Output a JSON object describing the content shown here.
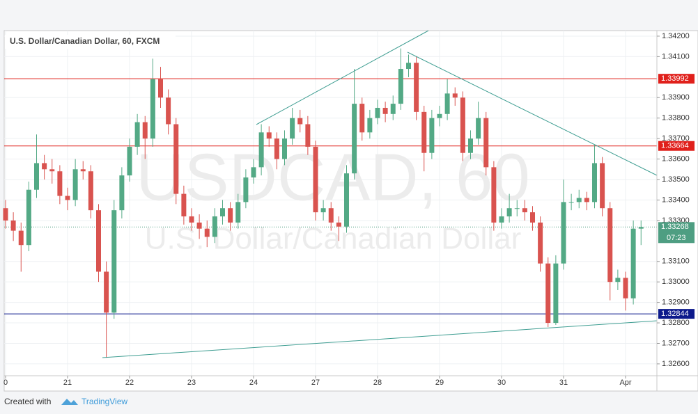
{
  "chart_data": {
    "type": "candlestick",
    "title": "U.S. Dollar/Canadian Dollar, 60, FXCM",
    "watermark": "USDCAD, 60",
    "watermark_subtitle": "U.S. Dollar/Canadian Dollar",
    "up_color": "#53a985",
    "down_color": "#d9534f",
    "ylim": [
      1.32542,
      1.34227
    ],
    "yticks": [
      {
        "value": 1.326,
        "label": "1.32600"
      },
      {
        "value": 1.327,
        "label": "1.32700"
      },
      {
        "value": 1.328,
        "label": "1.32800"
      },
      {
        "value": 1.329,
        "label": "1.32900"
      },
      {
        "value": 1.33,
        "label": "1.33000"
      },
      {
        "value": 1.331,
        "label": "1.33100"
      },
      {
        "value": 1.333,
        "label": "1.33300"
      },
      {
        "value": 1.334,
        "label": "1.33400"
      },
      {
        "value": 1.335,
        "label": "1.33500"
      },
      {
        "value": 1.336,
        "label": "1.33600"
      },
      {
        "value": 1.337,
        "label": "1.33700"
      },
      {
        "value": 1.338,
        "label": "1.33800"
      },
      {
        "value": 1.339,
        "label": "1.33900"
      },
      {
        "value": 1.341,
        "label": "1.34100"
      },
      {
        "value": 1.342,
        "label": "1.34200"
      }
    ],
    "xticks": [
      {
        "value": 0,
        "label": "0"
      },
      {
        "value": 8,
        "label": "21"
      },
      {
        "value": 16,
        "label": "22"
      },
      {
        "value": 24,
        "label": "23"
      },
      {
        "value": 32,
        "label": "24"
      },
      {
        "value": 40,
        "label": "27"
      },
      {
        "value": 48,
        "label": "28"
      },
      {
        "value": 56,
        "label": "29"
      },
      {
        "value": 64,
        "label": "30"
      },
      {
        "value": 72,
        "label": "31"
      },
      {
        "value": 80,
        "label": "Apr"
      }
    ],
    "levels": [
      {
        "value": 1.33992,
        "label": "1.33992",
        "color": "#e0201b"
      },
      {
        "value": 1.33664,
        "label": "1.33664",
        "color": "#e0201b"
      },
      {
        "value": 1.32844,
        "label": "1.32844",
        "color": "#0d1a8c"
      }
    ],
    "last_price": {
      "value": 1.33268,
      "label": "1.33268",
      "color": "#4e9e82",
      "countdown": "07:23"
    },
    "ohlc": [
      [
        1.3336,
        1.334,
        1.3326,
        1.333
      ],
      [
        1.333,
        1.3334,
        1.332,
        1.3325
      ],
      [
        1.3325,
        1.3329,
        1.3305,
        1.3318
      ],
      [
        1.3318,
        1.3349,
        1.3315,
        1.3345
      ],
      [
        1.3345,
        1.3372,
        1.3341,
        1.3358
      ],
      [
        1.3358,
        1.3362,
        1.335,
        1.3355
      ],
      [
        1.3355,
        1.336,
        1.3348,
        1.3354
      ],
      [
        1.3354,
        1.3357,
        1.3338,
        1.3342
      ],
      [
        1.3342,
        1.3346,
        1.3335,
        1.334
      ],
      [
        1.334,
        1.336,
        1.3337,
        1.3355
      ],
      [
        1.3355,
        1.3359,
        1.335,
        1.3354
      ],
      [
        1.3354,
        1.3357,
        1.3331,
        1.3335
      ],
      [
        1.3335,
        1.3338,
        1.33,
        1.3305
      ],
      [
        1.3305,
        1.331,
        1.3263,
        1.3285
      ],
      [
        1.3285,
        1.334,
        1.3282,
        1.3335
      ],
      [
        1.3335,
        1.3356,
        1.3331,
        1.3352
      ],
      [
        1.3352,
        1.337,
        1.3349,
        1.3366
      ],
      [
        1.3366,
        1.3382,
        1.3362,
        1.3378
      ],
      [
        1.3378,
        1.3381,
        1.336,
        1.337
      ],
      [
        1.337,
        1.3409,
        1.3366,
        1.3399
      ],
      [
        1.3399,
        1.3405,
        1.3385,
        1.339
      ],
      [
        1.339,
        1.3394,
        1.3372,
        1.3377
      ],
      [
        1.3377,
        1.338,
        1.3338,
        1.3343
      ],
      [
        1.3343,
        1.3347,
        1.3328,
        1.3332
      ],
      [
        1.3332,
        1.3336,
        1.3325,
        1.3329
      ],
      [
        1.3329,
        1.3333,
        1.3321,
        1.3326
      ],
      [
        1.3326,
        1.333,
        1.3317,
        1.3322
      ],
      [
        1.3322,
        1.3336,
        1.3319,
        1.3332
      ],
      [
        1.3332,
        1.334,
        1.3328,
        1.3336
      ],
      [
        1.3336,
        1.3339,
        1.3325,
        1.3329
      ],
      [
        1.3329,
        1.3343,
        1.3326,
        1.3339
      ],
      [
        1.3339,
        1.3355,
        1.3336,
        1.3351
      ],
      [
        1.3351,
        1.336,
        1.3348,
        1.3356
      ],
      [
        1.3356,
        1.3377,
        1.3352,
        1.3373
      ],
      [
        1.3373,
        1.3376,
        1.3366,
        1.337
      ],
      [
        1.337,
        1.3373,
        1.3355,
        1.336
      ],
      [
        1.336,
        1.3374,
        1.3357,
        1.337
      ],
      [
        1.337,
        1.3385,
        1.3367,
        1.338
      ],
      [
        1.338,
        1.3384,
        1.3373,
        1.3377
      ],
      [
        1.3377,
        1.3381,
        1.3362,
        1.3366
      ],
      [
        1.3366,
        1.3369,
        1.333,
        1.3334
      ],
      [
        1.3334,
        1.334,
        1.333,
        1.3336
      ],
      [
        1.3336,
        1.3339,
        1.3325,
        1.3329
      ],
      [
        1.3329,
        1.3332,
        1.332,
        1.3327
      ],
      [
        1.3327,
        1.3357,
        1.3324,
        1.3353
      ],
      [
        1.3353,
        1.3404,
        1.335,
        1.3387
      ],
      [
        1.3387,
        1.339,
        1.3369,
        1.3373
      ],
      [
        1.3373,
        1.3384,
        1.337,
        1.338
      ],
      [
        1.338,
        1.3389,
        1.3377,
        1.3385
      ],
      [
        1.3385,
        1.3388,
        1.3378,
        1.3382
      ],
      [
        1.3382,
        1.3391,
        1.3379,
        1.3387
      ],
      [
        1.3387,
        1.3414,
        1.3384,
        1.3404
      ],
      [
        1.3404,
        1.3411,
        1.34,
        1.3407
      ],
      [
        1.3407,
        1.341,
        1.3379,
        1.3383
      ],
      [
        1.3383,
        1.3386,
        1.3354,
        1.3363
      ],
      [
        1.3363,
        1.3384,
        1.336,
        1.338
      ],
      [
        1.338,
        1.3386,
        1.3376,
        1.3382
      ],
      [
        1.3382,
        1.3399,
        1.3379,
        1.3392
      ],
      [
        1.3392,
        1.3395,
        1.3386,
        1.339
      ],
      [
        1.339,
        1.3393,
        1.3359,
        1.3363
      ],
      [
        1.3363,
        1.3374,
        1.336,
        1.337
      ],
      [
        1.337,
        1.3388,
        1.3367,
        1.338
      ],
      [
        1.338,
        1.3383,
        1.3352,
        1.3356
      ],
      [
        1.3356,
        1.3359,
        1.3325,
        1.3329
      ],
      [
        1.3329,
        1.3336,
        1.3326,
        1.3332
      ],
      [
        1.3332,
        1.3343,
        1.3329,
        1.3336
      ],
      [
        1.3336,
        1.334,
        1.3332,
        1.3336
      ],
      [
        1.3336,
        1.334,
        1.333,
        1.3334
      ],
      [
        1.3334,
        1.3337,
        1.3325,
        1.3329
      ],
      [
        1.3329,
        1.3332,
        1.3305,
        1.3309
      ],
      [
        1.3309,
        1.3312,
        1.3278,
        1.328
      ],
      [
        1.328,
        1.3313,
        1.3279,
        1.3309
      ],
      [
        1.3309,
        1.335,
        1.3306,
        1.3339
      ],
      [
        1.3339,
        1.3343,
        1.3335,
        1.3339
      ],
      [
        1.3339,
        1.3345,
        1.3336,
        1.3341
      ],
      [
        1.3341,
        1.3344,
        1.3335,
        1.3339
      ],
      [
        1.3339,
        1.3367,
        1.3336,
        1.3358
      ],
      [
        1.3358,
        1.3361,
        1.3332,
        1.3336
      ],
      [
        1.3336,
        1.3339,
        1.3291,
        1.33
      ],
      [
        1.33,
        1.3306,
        1.3296,
        1.3302
      ],
      [
        1.3302,
        1.3305,
        1.3286,
        1.3292
      ],
      [
        1.3292,
        1.333,
        1.3289,
        1.3326
      ],
      [
        1.3326,
        1.333,
        1.3318,
        1.33268
      ]
    ]
  },
  "footer": {
    "prefix": "Created with",
    "brand": "TradingView"
  }
}
